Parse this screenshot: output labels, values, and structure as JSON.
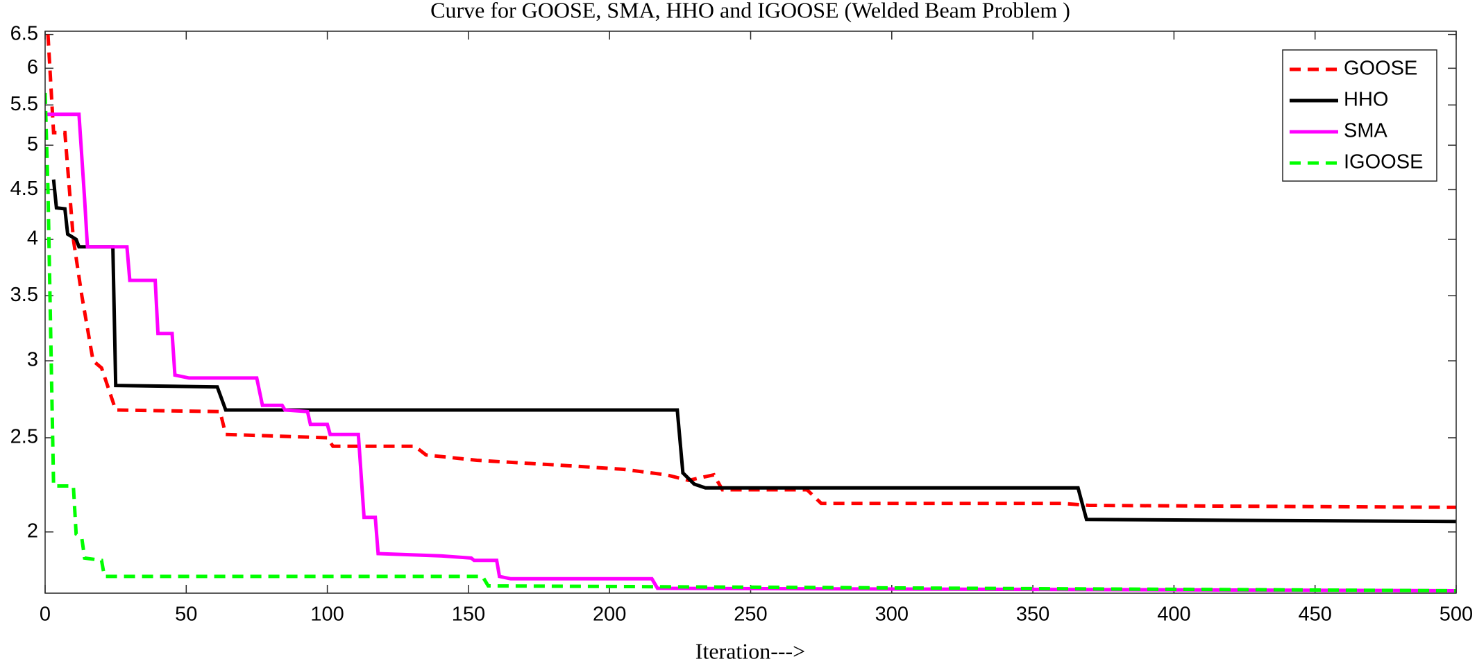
{
  "chart_data": {
    "type": "line",
    "title": "Curve for GOOSE, SMA, HHO and IGOOSE (Welded Beam Problem )",
    "xlabel": "Iteration--->",
    "xlim": [
      0,
      500
    ],
    "xticks": [
      0,
      50,
      100,
      150,
      200,
      250,
      300,
      350,
      400,
      450,
      500
    ],
    "ylim": [
      1.73,
      6.55
    ],
    "yticks": [
      2,
      2.5,
      3,
      3.5,
      4,
      4.5,
      5,
      5.5,
      6,
      6.5
    ],
    "yscale": "log",
    "legend": "upper right",
    "series": [
      {
        "name": "GOOSE",
        "color": "#ff0000",
        "linestyle": "--",
        "x": [
          1,
          3,
          7,
          10,
          13,
          17,
          20,
          25,
          62,
          64,
          100,
          102,
          131,
          135,
          153,
          185,
          205,
          220,
          228,
          237,
          240,
          270,
          275,
          360,
          370,
          500
        ],
        "values": [
          6.5,
          5.15,
          5.15,
          4.0,
          3.5,
          3.0,
          2.95,
          2.67,
          2.66,
          2.52,
          2.5,
          2.45,
          2.45,
          2.4,
          2.37,
          2.34,
          2.32,
          2.29,
          2.26,
          2.29,
          2.21,
          2.21,
          2.14,
          2.14,
          2.13,
          2.12
        ]
      },
      {
        "name": "HHO",
        "color": "#000000",
        "linestyle": "-",
        "x": [
          3,
          4,
          7,
          8,
          11,
          12,
          24,
          25,
          61,
          64,
          224,
          226,
          230,
          234,
          366,
          369,
          500
        ],
        "values": [
          4.61,
          4.31,
          4.3,
          4.05,
          4.0,
          3.93,
          3.93,
          2.83,
          2.82,
          2.67,
          2.67,
          2.3,
          2.24,
          2.22,
          2.22,
          2.06,
          2.05
        ]
      },
      {
        "name": "SMA",
        "color": "#ff00ff",
        "linestyle": "-",
        "x": [
          0,
          12,
          14,
          15,
          29,
          30,
          39,
          40,
          45,
          46,
          51,
          75,
          77,
          84,
          85,
          93,
          94,
          100,
          101,
          111,
          113,
          117,
          118,
          140,
          151,
          152,
          160,
          161,
          165,
          215,
          217,
          500
        ],
        "values": [
          5.38,
          5.38,
          4.4,
          3.93,
          3.93,
          3.63,
          3.63,
          3.2,
          3.2,
          2.9,
          2.88,
          2.88,
          2.7,
          2.7,
          2.67,
          2.66,
          2.58,
          2.58,
          2.52,
          2.52,
          2.07,
          2.07,
          1.9,
          1.89,
          1.88,
          1.87,
          1.87,
          1.8,
          1.79,
          1.79,
          1.75,
          1.74
        ]
      },
      {
        "name": "IGOOSE",
        "color": "#00ff00",
        "linestyle": "--",
        "x": [
          0,
          1,
          3,
          10,
          11,
          13,
          14,
          20,
          21,
          155,
          157,
          500
        ],
        "values": [
          5.66,
          4.5,
          2.23,
          2.23,
          1.99,
          1.97,
          1.88,
          1.87,
          1.8,
          1.8,
          1.76,
          1.74
        ]
      }
    ]
  }
}
